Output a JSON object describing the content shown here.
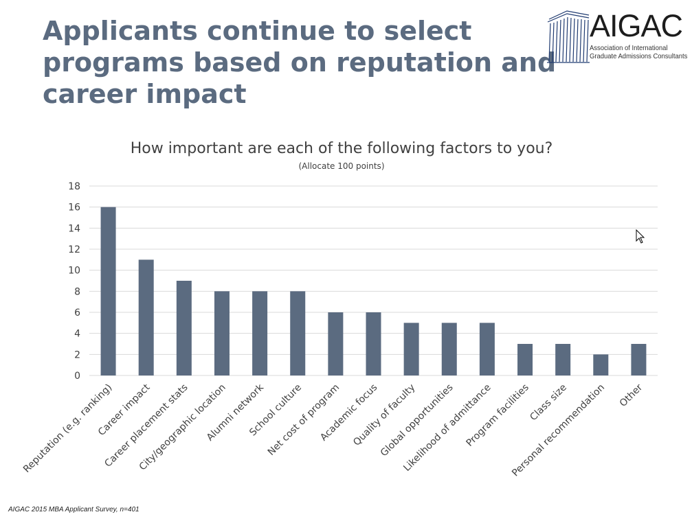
{
  "slide": {
    "title_lines": [
      "Applicants continue to select",
      "programs based on reputation and",
      "career impact"
    ],
    "footnote": "AIGAC 2015 MBA Applicant Survey, n=401"
  },
  "logo": {
    "name": "AIGAC",
    "subtitle_line1": "Association of International",
    "subtitle_line2": "Graduate Admissions Consultants"
  },
  "colors": {
    "title": "#5b6b80",
    "bar": "#5b6b80",
    "grid": "#d9d9d9",
    "text": "#404040"
  },
  "chart_data": {
    "type": "bar",
    "title": "How important are each of the following factors to you?",
    "subtitle": "(Allocate 100 points)",
    "categories": [
      "Reputation (e.g. ranking)",
      "Career impact",
      "Career placement stats",
      "City/geographic location",
      "Alumni network",
      "School culture",
      "Net cost of program",
      "Academic focus",
      "Quality of faculty",
      "Global opportunities",
      "Likelihood of admittance",
      "Program facilities",
      "Class size",
      "Personal recommendation",
      "Other"
    ],
    "values": [
      16,
      11,
      9,
      8,
      8,
      8,
      6,
      6,
      5,
      5,
      5,
      3,
      3,
      2,
      3
    ],
    "ylim": [
      0,
      18
    ],
    "yticks": [
      0,
      2,
      4,
      6,
      8,
      10,
      12,
      14,
      16,
      18
    ],
    "xlabel": "",
    "ylabel": "",
    "grid": true,
    "legend": "none"
  }
}
